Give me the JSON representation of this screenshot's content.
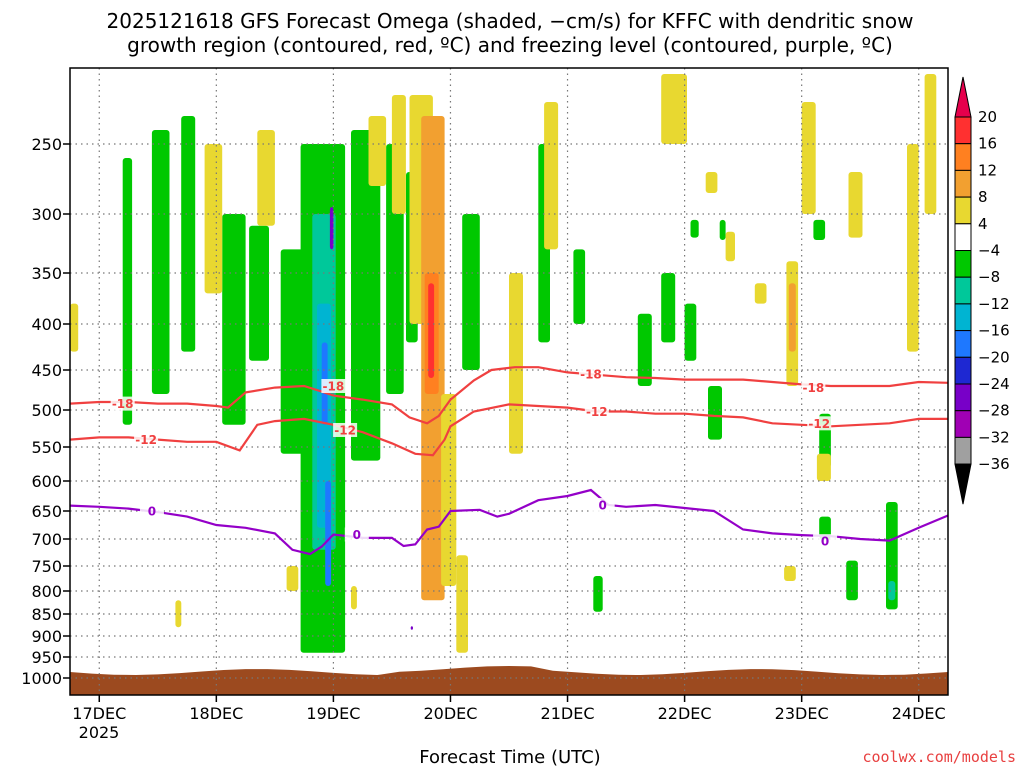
{
  "chart_data": {
    "type": "heatmap",
    "title_lines": [
      "2025121618 GFS Forecast Omega (shaded, −cm/s) for KFFC with dendritic snow",
      "growth region (contoured, red, ºC) and freezing level (contoured, purple, ºC)"
    ],
    "xlabel": "Forecast Time (UTC)",
    "credit": "coolwx.com/models",
    "year_label": "2025",
    "x_ticks": [
      {
        "t": 0,
        "label": "17DEC"
      },
      {
        "t": 1,
        "label": "18DEC"
      },
      {
        "t": 2,
        "label": "19DEC"
      },
      {
        "t": 3,
        "label": "20DEC"
      },
      {
        "t": 4,
        "label": "21DEC"
      },
      {
        "t": 5,
        "label": "22DEC"
      },
      {
        "t": 6,
        "label": "23DEC"
      },
      {
        "t": 7,
        "label": "24DEC"
      }
    ],
    "xlim": [
      -0.25,
      7.25
    ],
    "y_ticks": [
      "250",
      "300",
      "350",
      "400",
      "450",
      "500",
      "550",
      "600",
      "650",
      "700",
      "750",
      "800",
      "850",
      "900",
      "950",
      "1000"
    ],
    "y_tick_values": [
      250,
      300,
      350,
      400,
      450,
      500,
      550,
      600,
      650,
      700,
      750,
      800,
      850,
      900,
      950,
      1000
    ],
    "ylim": [
      200,
      1000
    ],
    "y_scale": "pressure",
    "grid": true,
    "colorbar": {
      "labels": [
        "20",
        "16",
        "12",
        "8",
        "4",
        "−4",
        "−8",
        "−12",
        "−16",
        "−20",
        "−24",
        "−28",
        "−32",
        "−36"
      ],
      "colors": [
        "#e6004c",
        "#ff3030",
        "#ff8020",
        "#f2a030",
        "#e8d830",
        "#ffffff",
        "#00c800",
        "#00c89a",
        "#00b4d2",
        "#1e78ff",
        "#1e28d2",
        "#7800c8",
        "#a000b4",
        "#a0a0a0",
        "#000000"
      ]
    },
    "contours": [
      {
        "label": "-18",
        "color": "#f04040",
        "points": [
          [
            -0.25,
            492
          ],
          [
            0,
            490
          ],
          [
            0.25,
            490
          ],
          [
            0.5,
            492
          ],
          [
            0.75,
            492
          ],
          [
            1,
            495
          ],
          [
            1.1,
            497
          ],
          [
            1.25,
            478
          ],
          [
            1.5,
            472
          ],
          [
            1.75,
            470
          ],
          [
            1.9,
            477
          ],
          [
            2,
            482
          ],
          [
            2.25,
            487
          ],
          [
            2.5,
            493
          ],
          [
            2.65,
            510
          ],
          [
            2.8,
            518
          ],
          [
            2.9,
            508
          ],
          [
            3,
            487
          ],
          [
            3.2,
            463
          ],
          [
            3.35,
            450
          ],
          [
            3.55,
            447
          ],
          [
            3.75,
            447
          ],
          [
            4,
            453
          ],
          [
            4.25,
            456
          ],
          [
            4.5,
            459
          ],
          [
            4.75,
            460
          ],
          [
            5,
            462
          ],
          [
            5.25,
            462
          ],
          [
            5.5,
            462
          ],
          [
            5.75,
            465
          ],
          [
            6,
            468
          ],
          [
            6.25,
            470
          ],
          [
            6.5,
            470
          ],
          [
            6.75,
            470
          ],
          [
            7,
            465
          ],
          [
            7.25,
            466
          ]
        ],
        "label_at": [
          [
            0.2,
            492
          ],
          [
            2.0,
            470
          ],
          [
            4.2,
            455
          ],
          [
            6.1,
            472
          ]
        ]
      },
      {
        "label": "-12",
        "color": "#f04040",
        "points": [
          [
            -0.25,
            540
          ],
          [
            0,
            537
          ],
          [
            0.25,
            537
          ],
          [
            0.5,
            540
          ],
          [
            0.75,
            543
          ],
          [
            1,
            543
          ],
          [
            1.2,
            555
          ],
          [
            1.35,
            520
          ],
          [
            1.5,
            515
          ],
          [
            1.75,
            512
          ],
          [
            2,
            520
          ],
          [
            2.25,
            530
          ],
          [
            2.5,
            545
          ],
          [
            2.7,
            560
          ],
          [
            2.85,
            562
          ],
          [
            2.95,
            540
          ],
          [
            3,
            522
          ],
          [
            3.2,
            502
          ],
          [
            3.5,
            493
          ],
          [
            3.75,
            495
          ],
          [
            4,
            497
          ],
          [
            4.25,
            502
          ],
          [
            4.5,
            502
          ],
          [
            4.75,
            505
          ],
          [
            5,
            505
          ],
          [
            5.25,
            508
          ],
          [
            5.5,
            510
          ],
          [
            5.75,
            518
          ],
          [
            6,
            520
          ],
          [
            6.25,
            522
          ],
          [
            6.5,
            520
          ],
          [
            6.75,
            518
          ],
          [
            7,
            512
          ],
          [
            7.25,
            512
          ]
        ],
        "label_at": [
          [
            0.4,
            540
          ],
          [
            2.1,
            527
          ],
          [
            4.25,
            502
          ],
          [
            6.15,
            518
          ]
        ]
      },
      {
        "label": "0",
        "color": "#9400c8",
        "points": [
          [
            -0.25,
            641
          ],
          [
            0,
            643
          ],
          [
            0.25,
            646
          ],
          [
            0.5,
            652
          ],
          [
            0.75,
            660
          ],
          [
            1,
            675
          ],
          [
            1.25,
            680
          ],
          [
            1.5,
            690
          ],
          [
            1.65,
            720
          ],
          [
            1.8,
            728
          ],
          [
            1.9,
            714
          ],
          [
            2,
            692
          ],
          [
            2.25,
            698
          ],
          [
            2.5,
            698
          ],
          [
            2.6,
            713
          ],
          [
            2.7,
            710
          ],
          [
            2.8,
            683
          ],
          [
            2.9,
            678
          ],
          [
            3,
            650
          ],
          [
            3.25,
            648
          ],
          [
            3.4,
            660
          ],
          [
            3.5,
            655
          ],
          [
            3.75,
            632
          ],
          [
            4,
            625
          ],
          [
            4.2,
            615
          ],
          [
            4.35,
            640
          ],
          [
            4.5,
            643
          ],
          [
            4.75,
            640
          ],
          [
            5,
            645
          ],
          [
            5.25,
            650
          ],
          [
            5.5,
            683
          ],
          [
            5.75,
            690
          ],
          [
            6,
            693
          ],
          [
            6.25,
            695
          ],
          [
            6.5,
            700
          ],
          [
            6.75,
            703
          ],
          [
            7,
            680
          ],
          [
            7.25,
            658
          ]
        ],
        "label_at": [
          [
            0.45,
            650
          ],
          [
            2.2,
            692
          ],
          [
            4.3,
            640
          ],
          [
            6.2,
            704
          ]
        ]
      }
    ]
  },
  "omega_regions": [
    {
      "c": "#00c800",
      "t0": 0.2,
      "t1": 0.28,
      "p0": 260,
      "p1": 520
    },
    {
      "c": "#00c800",
      "t0": 0.45,
      "t1": 0.6,
      "p0": 240,
      "p1": 480
    },
    {
      "c": "#00c800",
      "t0": 0.7,
      "t1": 0.82,
      "p0": 230,
      "p1": 430
    },
    {
      "c": "#00c800",
      "t0": 1.05,
      "t1": 1.25,
      "p0": 300,
      "p1": 520
    },
    {
      "c": "#00c800",
      "t0": 1.28,
      "t1": 1.45,
      "p0": 310,
      "p1": 440
    },
    {
      "c": "#00c800",
      "t0": 1.55,
      "t1": 1.75,
      "p0": 330,
      "p1": 560
    },
    {
      "c": "#00c800",
      "t0": 1.72,
      "t1": 2.1,
      "p0": 250,
      "p1": 940
    },
    {
      "c": "#00c89a",
      "t0": 1.82,
      "t1": 2.02,
      "p0": 300,
      "p1": 720
    },
    {
      "c": "#00b4d2",
      "t0": 1.86,
      "t1": 1.98,
      "p0": 380,
      "p1": 680
    },
    {
      "c": "#1e78ff",
      "t0": 1.9,
      "t1": 1.95,
      "p0": 420,
      "p1": 520
    },
    {
      "c": "#1e78ff",
      "t0": 1.93,
      "t1": 1.98,
      "p0": 600,
      "p1": 790
    },
    {
      "c": "#7800c8",
      "t0": 1.97,
      "t1": 2.0,
      "p0": 295,
      "p1": 330
    },
    {
      "c": "#00c800",
      "t0": 2.15,
      "t1": 2.4,
      "p0": 240,
      "p1": 570
    },
    {
      "c": "#00c800",
      "t0": 2.45,
      "t1": 2.6,
      "p0": 250,
      "p1": 480
    },
    {
      "c": "#00c800",
      "t0": 2.62,
      "t1": 2.72,
      "p0": 270,
      "p1": 420
    },
    {
      "c": "#00c800",
      "t0": 3.1,
      "t1": 3.25,
      "p0": 300,
      "p1": 450
    },
    {
      "c": "#00c800",
      "t0": 3.75,
      "t1": 3.85,
      "p0": 250,
      "p1": 420
    },
    {
      "c": "#00c800",
      "t0": 4.05,
      "t1": 4.15,
      "p0": 330,
      "p1": 400
    },
    {
      "c": "#00c800",
      "t0": 4.8,
      "t1": 4.92,
      "p0": 350,
      "p1": 420
    },
    {
      "c": "#00c800",
      "t0": 5.0,
      "t1": 5.1,
      "p0": 380,
      "p1": 440
    },
    {
      "c": "#00c800",
      "t0": 4.6,
      "t1": 4.72,
      "p0": 390,
      "p1": 470
    },
    {
      "c": "#00c800",
      "t0": 5.2,
      "t1": 5.32,
      "p0": 470,
      "p1": 540
    },
    {
      "c": "#00c800",
      "t0": 5.05,
      "t1": 5.12,
      "p0": 305,
      "p1": 320
    },
    {
      "c": "#00c800",
      "t0": 5.3,
      "t1": 5.35,
      "p0": 305,
      "p1": 322
    },
    {
      "c": "#00c800",
      "t0": 6.1,
      "t1": 6.2,
      "p0": 305,
      "p1": 322
    },
    {
      "c": "#00c800",
      "t0": 6.15,
      "t1": 6.25,
      "p0": 505,
      "p1": 580
    },
    {
      "c": "#00c800",
      "t0": 6.15,
      "t1": 6.25,
      "p0": 660,
      "p1": 700
    },
    {
      "c": "#00c800",
      "t0": 6.38,
      "t1": 6.48,
      "p0": 740,
      "p1": 820
    },
    {
      "c": "#00c800",
      "t0": 6.72,
      "t1": 6.82,
      "p0": 635,
      "p1": 840
    },
    {
      "c": "#00c89a",
      "t0": 6.74,
      "t1": 6.8,
      "p0": 780,
      "p1": 820
    },
    {
      "c": "#00c800",
      "t0": 4.22,
      "t1": 4.3,
      "p0": 770,
      "p1": 845
    },
    {
      "c": "#e8d830",
      "t0": -0.25,
      "t1": -0.18,
      "p0": 380,
      "p1": 430
    },
    {
      "c": "#e8d830",
      "t0": 0.9,
      "t1": 1.05,
      "p0": 250,
      "p1": 370
    },
    {
      "c": "#e8d830",
      "t0": 1.35,
      "t1": 1.5,
      "p0": 240,
      "p1": 310
    },
    {
      "c": "#e8d830",
      "t0": 2.3,
      "t1": 2.45,
      "p0": 230,
      "p1": 280
    },
    {
      "c": "#e8d830",
      "t0": 2.5,
      "t1": 2.62,
      "p0": 215,
      "p1": 300
    },
    {
      "c": "#e8d830",
      "t0": 2.65,
      "t1": 2.85,
      "p0": 215,
      "p1": 400
    },
    {
      "c": "#f2a030",
      "t0": 2.75,
      "t1": 2.95,
      "p0": 230,
      "p1": 820
    },
    {
      "c": "#ff8020",
      "t0": 2.78,
      "t1": 2.9,
      "p0": 350,
      "p1": 480
    },
    {
      "c": "#ff3030",
      "t0": 2.81,
      "t1": 2.86,
      "p0": 360,
      "p1": 460
    },
    {
      "c": "#e8d830",
      "t0": 2.92,
      "t1": 3.05,
      "p0": 480,
      "p1": 790
    },
    {
      "c": "#e8d830",
      "t0": 3.05,
      "t1": 3.15,
      "p0": 730,
      "p1": 940
    },
    {
      "c": "#e8d830",
      "t0": 3.5,
      "t1": 3.62,
      "p0": 350,
      "p1": 560
    },
    {
      "c": "#e8d830",
      "t0": 3.8,
      "t1": 3.92,
      "p0": 220,
      "p1": 330
    },
    {
      "c": "#e8d830",
      "t0": 4.8,
      "t1": 5.02,
      "p0": 200,
      "p1": 250
    },
    {
      "c": "#e8d830",
      "t0": 5.18,
      "t1": 5.28,
      "p0": 270,
      "p1": 285
    },
    {
      "c": "#e8d830",
      "t0": 5.35,
      "t1": 5.43,
      "p0": 315,
      "p1": 340
    },
    {
      "c": "#e8d830",
      "t0": 5.6,
      "t1": 5.7,
      "p0": 360,
      "p1": 380
    },
    {
      "c": "#e8d830",
      "t0": 6.0,
      "t1": 6.12,
      "p0": 220,
      "p1": 300
    },
    {
      "c": "#e8d830",
      "t0": 5.87,
      "t1": 5.97,
      "p0": 340,
      "p1": 470
    },
    {
      "c": "#f2a030",
      "t0": 5.89,
      "t1": 5.95,
      "p0": 360,
      "p1": 430
    },
    {
      "c": "#e8d830",
      "t0": 6.13,
      "t1": 6.25,
      "p0": 560,
      "p1": 600
    },
    {
      "c": "#e8d830",
      "t0": 5.85,
      "t1": 5.95,
      "p0": 750,
      "p1": 780
    },
    {
      "c": "#e8d830",
      "t0": 6.4,
      "t1": 6.52,
      "p0": 270,
      "p1": 320
    },
    {
      "c": "#e8d830",
      "t0": 6.9,
      "t1": 7.0,
      "p0": 250,
      "p1": 430
    },
    {
      "c": "#e8d830",
      "t0": 7.05,
      "t1": 7.15,
      "p0": 200,
      "p1": 300
    },
    {
      "c": "#e8d830",
      "t0": 0.65,
      "t1": 0.7,
      "p0": 820,
      "p1": 880
    },
    {
      "c": "#e8d830",
      "t0": 1.6,
      "t1": 1.7,
      "p0": 750,
      "p1": 800
    },
    {
      "c": "#e8d830",
      "t0": 2.15,
      "t1": 2.2,
      "p0": 790,
      "p1": 840
    },
    {
      "c": "#7800c8",
      "t0": 2.66,
      "t1": 2.68,
      "p0": 878,
      "p1": 886
    }
  ]
}
